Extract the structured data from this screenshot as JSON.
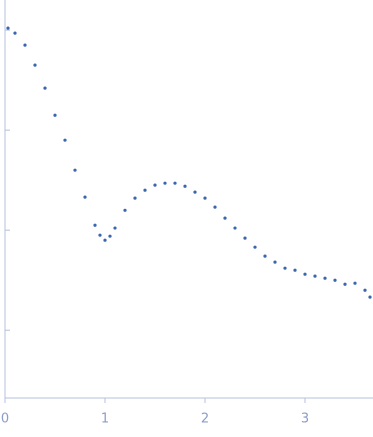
{
  "chart_data": {
    "type": "scatter",
    "color": "#3a66b0",
    "yscale": "log",
    "ytick_labels": false,
    "x": [
      0.03,
      0.1,
      0.2,
      0.3,
      0.4,
      0.5,
      0.6,
      0.7,
      0.8,
      0.9,
      0.95,
      1.0,
      1.05,
      1.1,
      1.2,
      1.3,
      1.4,
      1.5,
      1.6,
      1.7,
      1.8,
      1.9,
      2.0,
      2.1,
      2.2,
      2.3,
      2.4,
      2.5,
      2.6,
      2.7,
      2.8,
      2.9,
      3.0,
      3.1,
      3.2,
      3.3,
      3.4,
      3.5,
      3.6,
      3.65
    ],
    "values": [
      1.047,
      0.933,
      0.708,
      0.447,
      0.263,
      0.141,
      0.0794,
      0.0398,
      0.0214,
      0.0112,
      0.00891,
      0.00794,
      0.00871,
      0.0105,
      0.0158,
      0.0209,
      0.0251,
      0.0282,
      0.0295,
      0.0295,
      0.0275,
      0.024,
      0.0209,
      0.017,
      0.0132,
      0.0105,
      0.00832,
      0.00676,
      0.0055,
      0.00479,
      0.00417,
      0.00398,
      0.00363,
      0.00347,
      0.00331,
      0.00316,
      0.00288,
      0.00295,
      0.00251,
      0.00214
    ],
    "xlim": [
      0,
      3.68
    ],
    "xticks": [
      0,
      1,
      2,
      3
    ],
    "ylim": [
      0.00021,
      2
    ],
    "yticks": [
      1,
      0.1,
      0.01,
      0.001
    ]
  }
}
